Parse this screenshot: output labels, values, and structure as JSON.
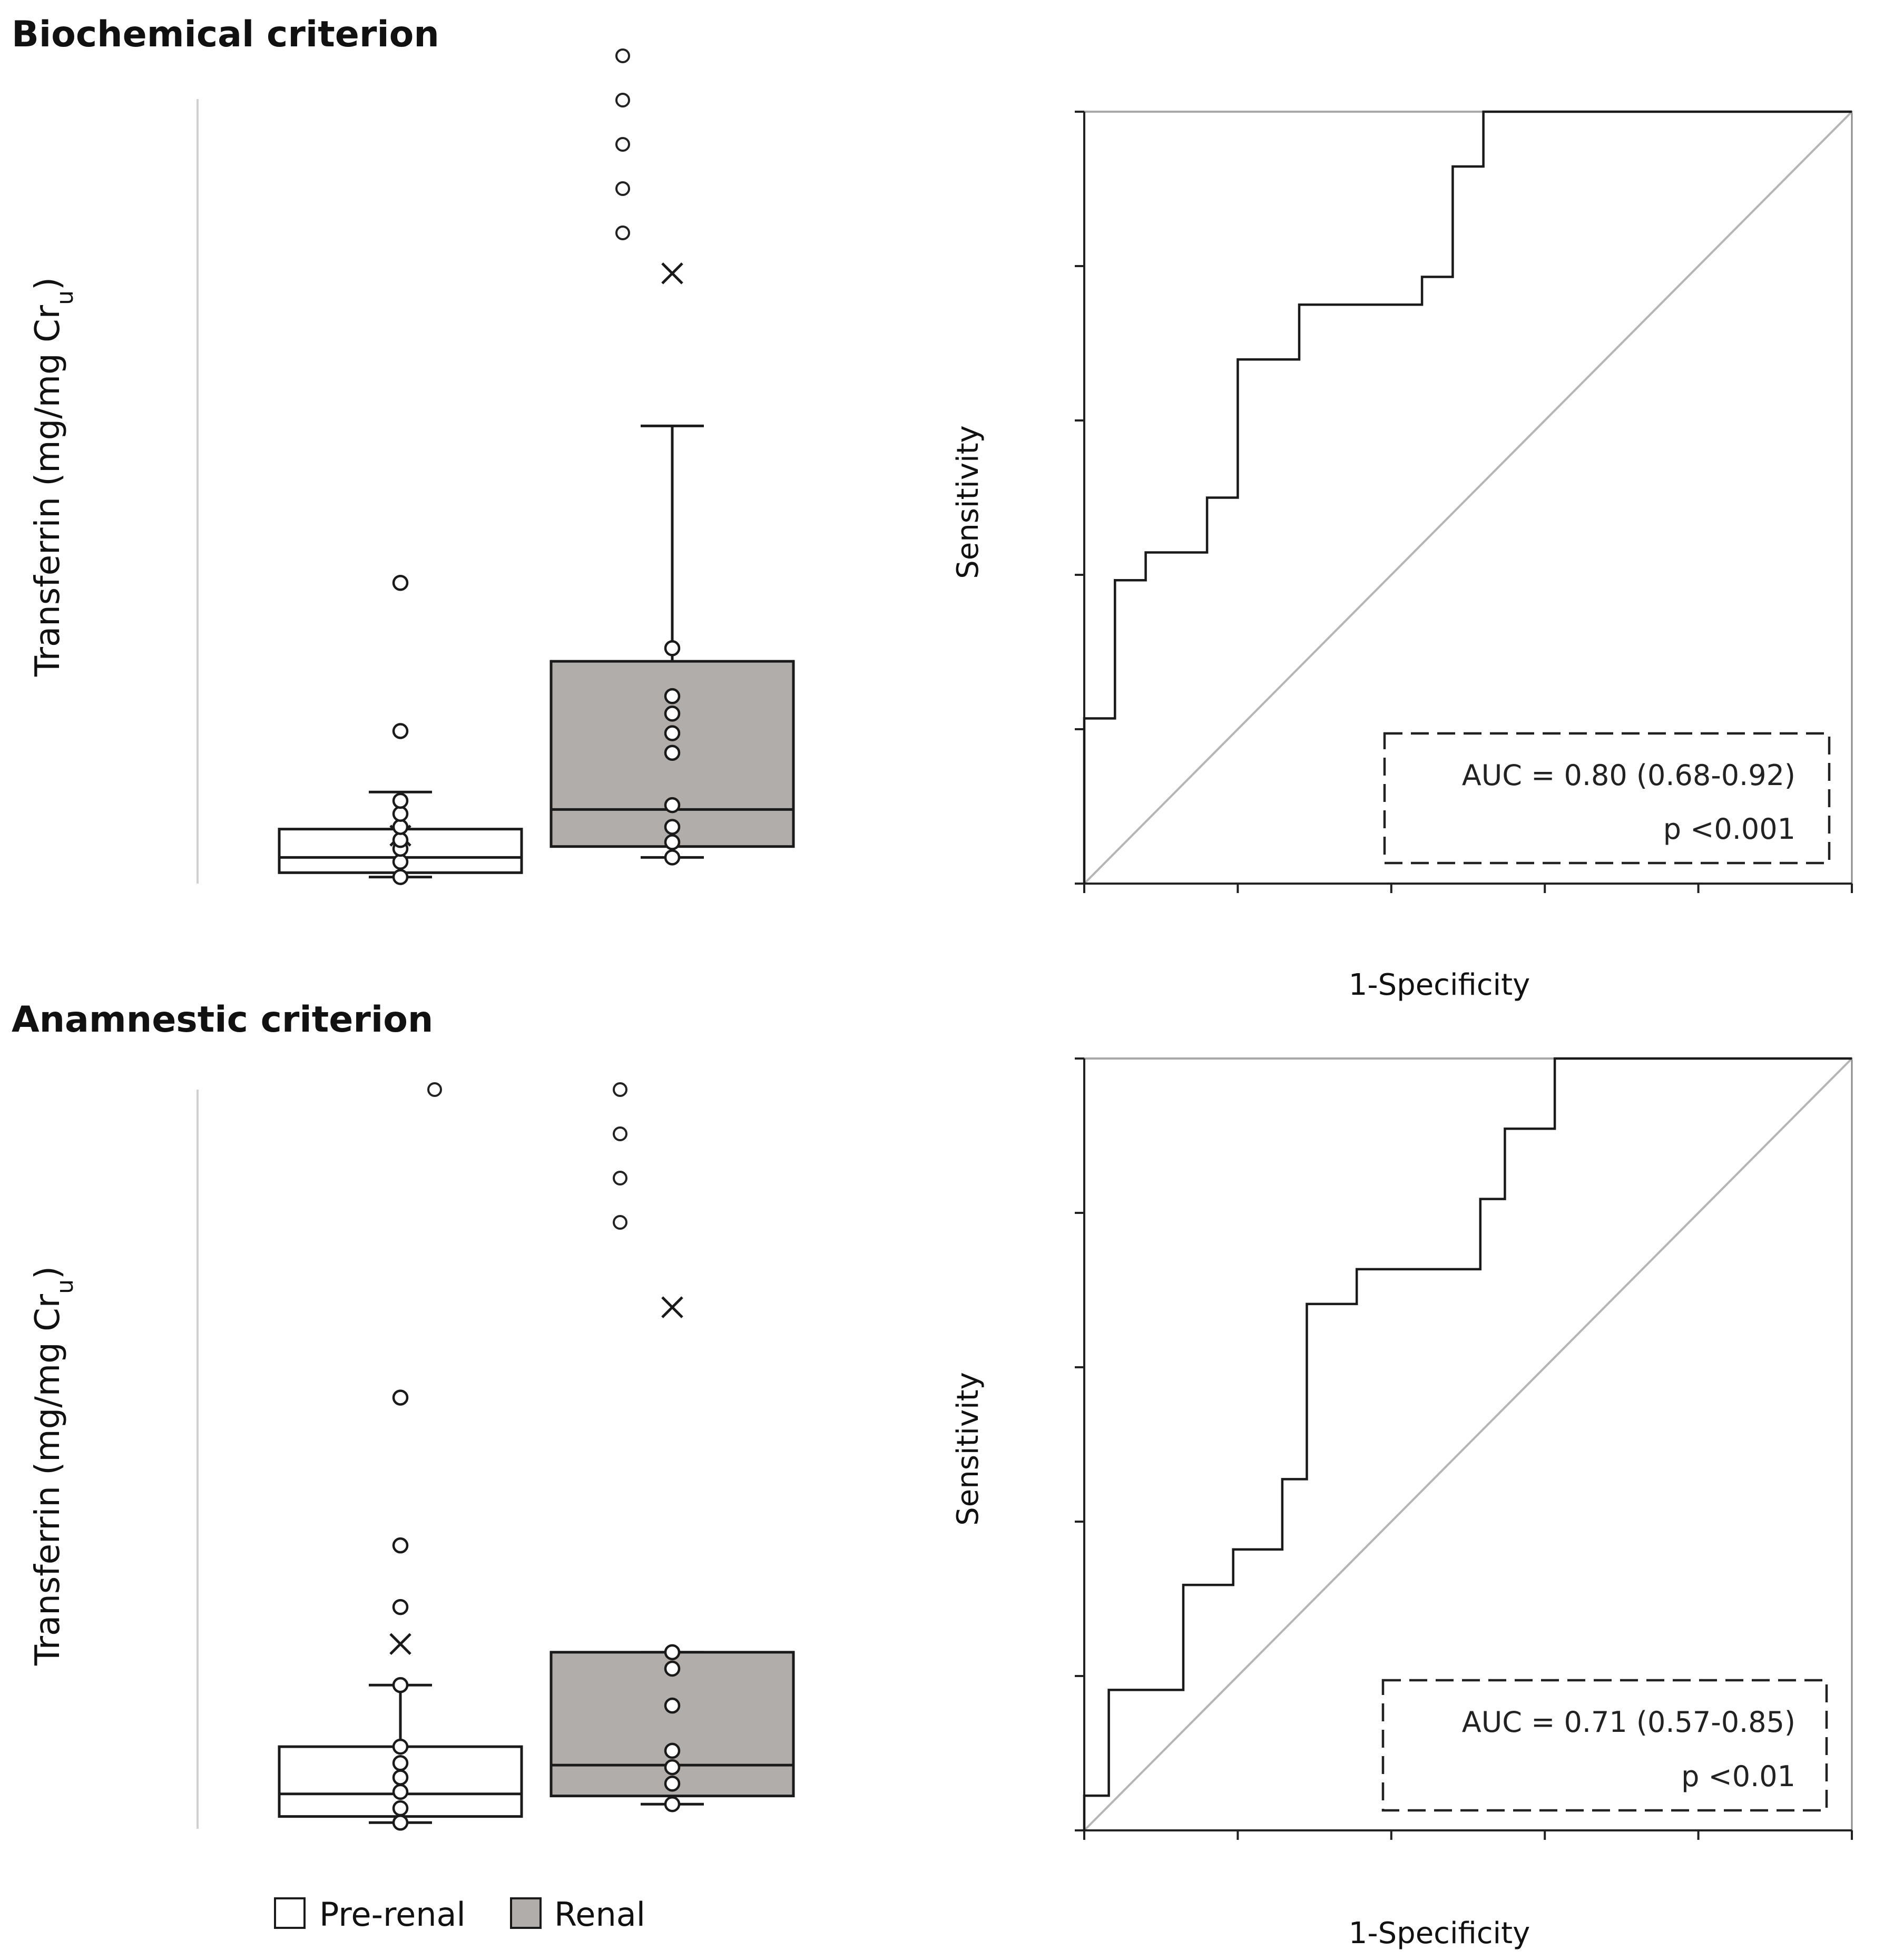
{
  "colors": {
    "pre_renal_fill": "#ffffff",
    "renal_fill": "#b1adab",
    "stroke": "#1a1a1a",
    "diagonal": "#b5b5b5",
    "frame": "#8a8a8a"
  },
  "legend": {
    "pre_renal": "Pre-renal",
    "renal": "Renal"
  },
  "chart_data": [
    {
      "type": "box",
      "title": "Biochemical criterion",
      "ylabel": "Transferrin (mg/mg Cr",
      "ylabel_sub": "u",
      "ylabel_close": ")",
      "ylim": [
        0,
        180
      ],
      "yticks": [
        "0",
        "20",
        "40",
        "60",
        "80",
        "100",
        "120",
        "140",
        "160",
        "180"
      ],
      "significance": "***",
      "groups": [
        {
          "name": "Pre-renal",
          "whisker_low": 1.5,
          "q1": 2.5,
          "median": 6,
          "q3": 12.5,
          "whisker_high": 21,
          "mean": 11,
          "points": [
            1.5,
            5,
            8,
            10,
            13,
            16,
            19,
            35,
            69
          ],
          "offscale": []
        },
        {
          "name": "Renal",
          "whisker_low": 6,
          "q1": 8.5,
          "median": 17,
          "q3": 51,
          "whisker_high": 105,
          "mean": 140,
          "points": [
            6,
            9.5,
            13,
            18,
            30,
            34.5,
            39,
            43,
            54
          ],
          "offscale": [
            "1249.55",
            "914.11",
            "484.98",
            "414.45",
            "313.79"
          ]
        }
      ]
    },
    {
      "type": "line",
      "xlabel": "1-Specificity",
      "ylabel": "Sensitivity",
      "xlim": [
        0,
        1
      ],
      "ylim": [
        0,
        1
      ],
      "xticks": [
        "0.0",
        "0.2",
        "0.4",
        "0.6",
        "0.8",
        "1.0"
      ],
      "yticks": [
        "0.0",
        "0.2",
        "0.4",
        "0.6",
        "0.8",
        "1.0"
      ],
      "auc_text": "AUC = 0.80 (0.68-0.92)",
      "p_text": "p <0.001",
      "roc": [
        [
          0,
          0
        ],
        [
          0,
          0.214
        ],
        [
          0.04,
          0.214
        ],
        [
          0.04,
          0.393
        ],
        [
          0.08,
          0.393
        ],
        [
          0.08,
          0.429
        ],
        [
          0.16,
          0.429
        ],
        [
          0.16,
          0.5
        ],
        [
          0.2,
          0.5
        ],
        [
          0.2,
          0.679
        ],
        [
          0.28,
          0.679
        ],
        [
          0.28,
          0.75
        ],
        [
          0.44,
          0.75
        ],
        [
          0.44,
          0.786
        ],
        [
          0.48,
          0.786
        ],
        [
          0.48,
          0.929
        ],
        [
          0.52,
          0.929
        ],
        [
          0.52,
          1
        ],
        [
          1,
          1
        ]
      ]
    },
    {
      "type": "box",
      "title": "Anamnestic criterion",
      "ylabel": "Transferrin (mg/mg Cr",
      "ylabel_sub": "u",
      "ylabel_close": ")",
      "ylim": [
        0,
        180
      ],
      "yticks": [
        "0",
        "20",
        "40",
        "60",
        "80",
        "100",
        "120",
        "140",
        "160",
        "180"
      ],
      "significance": "**",
      "groups": [
        {
          "name": "Pre-renal",
          "whisker_low": 1.5,
          "q1": 3,
          "median": 8.5,
          "q3": 20,
          "whisker_high": 35,
          "mean": 45,
          "points": [
            1.5,
            5,
            9,
            12.5,
            16,
            20,
            35,
            54,
            69,
            105
          ],
          "offscale": [
            "914.11"
          ]
        },
        {
          "name": "Renal",
          "whisker_low": 6,
          "q1": 8,
          "median": 15.5,
          "q3": 43,
          "whisker_high": 43,
          "mean": 127,
          "points": [
            6,
            11,
            15,
            19,
            30,
            39,
            43
          ],
          "offscale": [
            "1249.55",
            "484.98",
            "414.45",
            "313.79"
          ]
        }
      ]
    },
    {
      "type": "line",
      "xlabel": "1-Specificity",
      "ylabel": "Sensitivity",
      "xlim": [
        0,
        1
      ],
      "ylim": [
        0,
        1
      ],
      "xticks": [
        "0.0",
        "0.2",
        "0.4",
        "0.6",
        "0.8",
        "1.0"
      ],
      "yticks": [
        "0.0",
        "0.2",
        "0.4",
        "0.6",
        "0.8",
        "1.0"
      ],
      "auc_text": "AUC = 0.71 (0.57-0.85)",
      "p_text": "p <0.01",
      "roc": [
        [
          0,
          0
        ],
        [
          0,
          0.045
        ],
        [
          0.032,
          0.045
        ],
        [
          0.032,
          0.182
        ],
        [
          0.129,
          0.182
        ],
        [
          0.129,
          0.318
        ],
        [
          0.194,
          0.318
        ],
        [
          0.194,
          0.364
        ],
        [
          0.258,
          0.364
        ],
        [
          0.258,
          0.455
        ],
        [
          0.29,
          0.455
        ],
        [
          0.29,
          0.682
        ],
        [
          0.355,
          0.682
        ],
        [
          0.355,
          0.727
        ],
        [
          0.516,
          0.727
        ],
        [
          0.516,
          0.818
        ],
        [
          0.548,
          0.818
        ],
        [
          0.548,
          0.909
        ],
        [
          0.613,
          0.909
        ],
        [
          0.613,
          1
        ],
        [
          1,
          1
        ]
      ]
    }
  ]
}
